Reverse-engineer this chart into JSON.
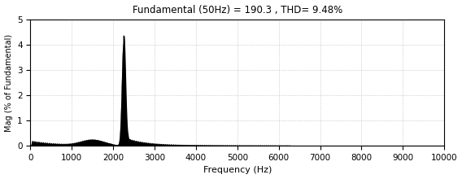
{
  "title": "Fundamental (50Hz) = 190.3 , THD= 9.48%",
  "xlabel": "Frequency (Hz)",
  "ylabel": "Mag (% of Fundamental)",
  "xlim": [
    0,
    10000
  ],
  "ylim": [
    0,
    5
  ],
  "xticks": [
    0,
    1000,
    2000,
    3000,
    4000,
    5000,
    6000,
    7000,
    8000,
    9000,
    10000
  ],
  "yticks": [
    0,
    1,
    2,
    3,
    4,
    5
  ],
  "peak_freq": 2250,
  "peak_mag": 4.05,
  "fill_color": "#000000",
  "background_color": "#ffffff",
  "fig_width": 5.68,
  "fig_height": 2.2,
  "dpi": 100
}
